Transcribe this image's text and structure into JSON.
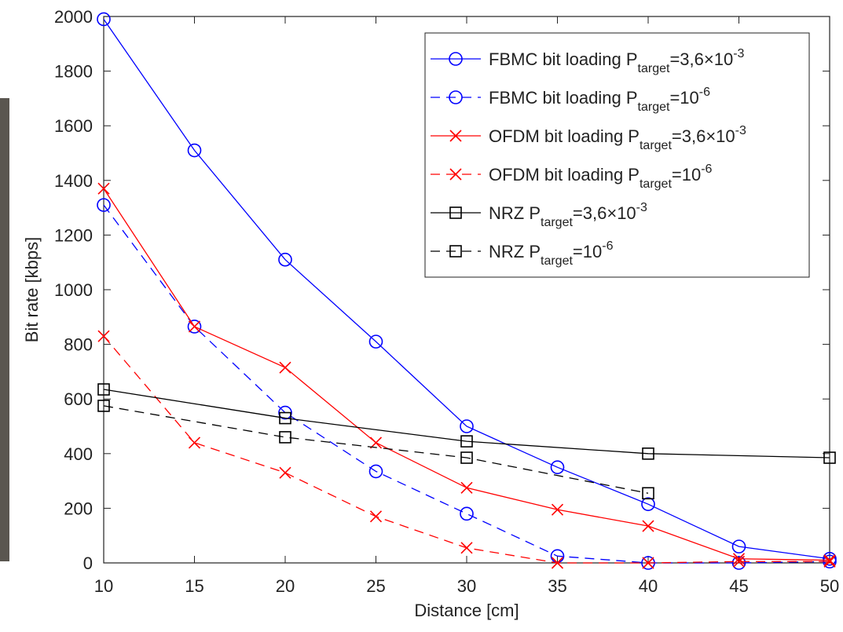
{
  "chart_data": {
    "type": "line",
    "xlabel": "Distance [cm]",
    "ylabel": "Bit rate [kbps]",
    "xlim": [
      10,
      50
    ],
    "xticks": [
      10,
      15,
      20,
      25,
      30,
      35,
      40,
      45,
      50
    ],
    "ylim": [
      0,
      2000
    ],
    "yticks": [
      0,
      200,
      400,
      600,
      800,
      1000,
      1200,
      1400,
      1600,
      1800,
      2000
    ],
    "grid": false,
    "legend": "upper right",
    "series": [
      {
        "name": {
          "text": "FBMC bit loading P",
          "sub": "target",
          "eq": "=3,6×10",
          "sup": "-3"
        },
        "color": "#0000ff",
        "marker": "circle",
        "dash": false,
        "x": [
          10,
          15,
          20,
          25,
          30,
          35,
          40,
          45,
          50
        ],
        "values": [
          1990,
          1510,
          1110,
          810,
          500,
          350,
          215,
          60,
          15
        ]
      },
      {
        "name": {
          "text": "FBMC bit loading P",
          "sub": "target",
          "eq": "=10",
          "sup": "-6"
        },
        "color": "#0000ff",
        "marker": "circle",
        "dash": true,
        "x": [
          10,
          15,
          20,
          25,
          30,
          35,
          40,
          45,
          50
        ],
        "values": [
          1310,
          865,
          550,
          335,
          180,
          25,
          0,
          0,
          5
        ]
      },
      {
        "name": {
          "text": "OFDM bit loading P",
          "sub": "target",
          "eq": "=3,6×10",
          "sup": "-3"
        },
        "color": "#ff0000",
        "marker": "cross",
        "dash": false,
        "x": [
          10,
          15,
          20,
          25,
          30,
          35,
          40,
          45,
          50
        ],
        "values": [
          1370,
          865,
          715,
          440,
          275,
          195,
          135,
          15,
          10
        ]
      },
      {
        "name": {
          "text": "OFDM bit loading P",
          "sub": "target",
          "eq": "=10",
          "sup": "-6"
        },
        "color": "#ff0000",
        "marker": "cross",
        "dash": true,
        "x": [
          10,
          15,
          20,
          25,
          30,
          35,
          40,
          45,
          50
        ],
        "values": [
          830,
          440,
          330,
          170,
          55,
          0,
          0,
          5,
          5
        ]
      },
      {
        "name": {
          "text": "NRZ P",
          "sub": "target",
          "eq": "=3,6×10",
          "sup": "-3"
        },
        "color": "#000000",
        "marker": "square",
        "dash": false,
        "x": [
          10,
          20,
          30,
          40,
          50
        ],
        "values": [
          635,
          530,
          445,
          400,
          385
        ]
      },
      {
        "name": {
          "text": "NRZ P",
          "sub": "target",
          "eq": "=10",
          "sup": "-6"
        },
        "color": "#000000",
        "marker": "square",
        "dash": true,
        "x": [
          10,
          20,
          30,
          40
        ],
        "values": [
          575,
          460,
          385,
          255
        ]
      }
    ]
  }
}
